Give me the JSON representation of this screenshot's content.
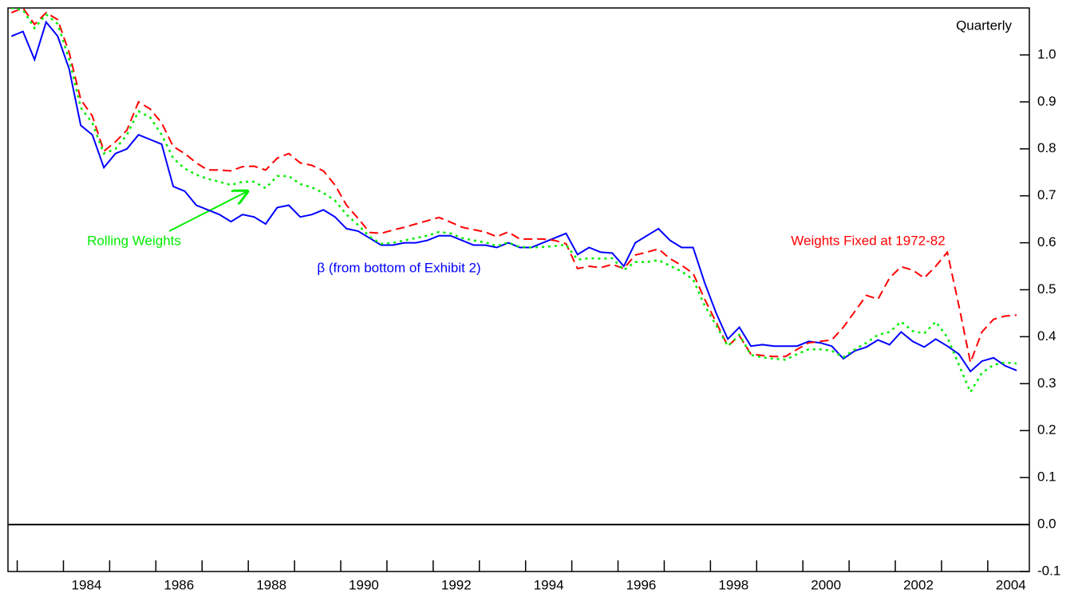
{
  "chart_data": {
    "type": "line",
    "title": "Quarterly",
    "x": [
      1982.875,
      1983.125,
      1983.375,
      1983.625,
      1983.875,
      1984.125,
      1984.375,
      1984.625,
      1984.875,
      1985.125,
      1985.375,
      1985.625,
      1985.875,
      1986.125,
      1986.375,
      1986.625,
      1986.875,
      1987.125,
      1987.375,
      1987.625,
      1987.875,
      1988.125,
      1988.375,
      1988.625,
      1988.875,
      1989.125,
      1989.375,
      1989.625,
      1989.875,
      1990.125,
      1990.375,
      1990.625,
      1990.875,
      1991.125,
      1991.375,
      1991.625,
      1991.875,
      1992.125,
      1992.375,
      1992.625,
      1992.875,
      1993.125,
      1993.375,
      1993.625,
      1993.875,
      1994.125,
      1994.375,
      1994.625,
      1994.875,
      1995.125,
      1995.375,
      1995.625,
      1995.875,
      1996.125,
      1996.375,
      1996.625,
      1996.875,
      1997.125,
      1997.375,
      1997.625,
      1997.875,
      1998.125,
      1998.375,
      1998.625,
      1998.875,
      1999.125,
      1999.375,
      1999.625,
      1999.875,
      2000.125,
      2000.375,
      2000.625,
      2000.875,
      2001.125,
      2001.375,
      2001.625,
      2001.875,
      2002.125,
      2002.375,
      2002.625,
      2002.875,
      2003.125,
      2003.375,
      2003.625,
      2003.875,
      2004.125,
      2004.375,
      2004.625
    ],
    "series": [
      {
        "name": "β (from bottom of Exhibit 2)",
        "color": "#0000ff",
        "style": "solid",
        "values": [
          1.04,
          1.05,
          0.99,
          1.07,
          1.04,
          0.97,
          0.85,
          0.83,
          0.76,
          0.79,
          0.8,
          0.83,
          0.82,
          0.81,
          0.72,
          0.71,
          0.68,
          0.67,
          0.66,
          0.645,
          0.66,
          0.655,
          0.64,
          0.675,
          0.68,
          0.655,
          0.66,
          0.67,
          0.655,
          0.63,
          0.625,
          0.61,
          0.595,
          0.595,
          0.6,
          0.6,
          0.605,
          0.615,
          0.615,
          0.605,
          0.595,
          0.595,
          0.59,
          0.6,
          0.59,
          0.59,
          0.6,
          0.61,
          0.62,
          0.575,
          0.59,
          0.58,
          0.578,
          0.55,
          0.6,
          0.615,
          0.63,
          0.605,
          0.59,
          0.59,
          0.515,
          0.45,
          0.395,
          0.42,
          0.38,
          0.383,
          0.38,
          0.38,
          0.38,
          0.39,
          0.387,
          0.38,
          0.353,
          0.37,
          0.378,
          0.393,
          0.383,
          0.41,
          0.39,
          0.378,
          0.395,
          0.38,
          0.363,
          0.326,
          0.348,
          0.355,
          0.338,
          0.328
        ]
      },
      {
        "name": "Weights Fixed at 1972-82",
        "color": "#ff0000",
        "style": "dashed",
        "values": [
          1.09,
          1.1,
          1.065,
          1.09,
          1.075,
          1.005,
          0.905,
          0.87,
          0.795,
          0.815,
          0.84,
          0.9,
          0.885,
          0.855,
          0.805,
          0.79,
          0.77,
          0.755,
          0.755,
          0.753,
          0.762,
          0.763,
          0.755,
          0.78,
          0.79,
          0.77,
          0.765,
          0.753,
          0.723,
          0.68,
          0.652,
          0.622,
          0.62,
          0.627,
          0.633,
          0.64,
          0.647,
          0.654,
          0.644,
          0.633,
          0.628,
          0.623,
          0.613,
          0.623,
          0.608,
          0.608,
          0.608,
          0.605,
          0.598,
          0.545,
          0.55,
          0.547,
          0.554,
          0.545,
          0.574,
          0.58,
          0.587,
          0.566,
          0.552,
          0.535,
          0.48,
          0.43,
          0.38,
          0.402,
          0.363,
          0.36,
          0.358,
          0.358,
          0.373,
          0.387,
          0.39,
          0.393,
          0.42,
          0.454,
          0.488,
          0.48,
          0.525,
          0.549,
          0.542,
          0.525,
          0.55,
          0.58,
          0.466,
          0.345,
          0.41,
          0.437,
          0.444,
          0.446
        ]
      },
      {
        "name": "Rolling Weights",
        "color": "#00ee00",
        "style": "dotted",
        "values": [
          1.1,
          1.096,
          1.057,
          1.086,
          1.066,
          0.99,
          0.888,
          0.855,
          0.79,
          0.8,
          0.83,
          0.88,
          0.867,
          0.83,
          0.78,
          0.758,
          0.745,
          0.736,
          0.73,
          0.723,
          0.73,
          0.73,
          0.716,
          0.742,
          0.742,
          0.725,
          0.718,
          0.706,
          0.69,
          0.66,
          0.638,
          0.613,
          0.598,
          0.6,
          0.605,
          0.61,
          0.615,
          0.623,
          0.62,
          0.61,
          0.605,
          0.601,
          0.593,
          0.601,
          0.591,
          0.59,
          0.591,
          0.593,
          0.596,
          0.564,
          0.567,
          0.566,
          0.567,
          0.542,
          0.559,
          0.559,
          0.563,
          0.551,
          0.539,
          0.522,
          0.466,
          0.424,
          0.38,
          0.404,
          0.361,
          0.356,
          0.353,
          0.351,
          0.363,
          0.373,
          0.373,
          0.37,
          0.356,
          0.373,
          0.387,
          0.404,
          0.41,
          0.432,
          0.412,
          0.407,
          0.432,
          0.399,
          0.34,
          0.282,
          0.323,
          0.34,
          0.345,
          0.343
        ]
      }
    ],
    "xlim": [
      1982.8,
      2004.9
    ],
    "xticks": [
      1984,
      1986,
      1988,
      1990,
      1992,
      1994,
      1996,
      1998,
      2000,
      2002,
      2004
    ],
    "xminor_ticks": [
      1983,
      1985,
      1987,
      1989,
      1991,
      1993,
      1995,
      1997,
      1999,
      2001,
      2003
    ],
    "ylim": [
      -0.1,
      1.1
    ],
    "yticks": [
      -0.1,
      {
        "value": 0,
        "label": "0.0"
      },
      0.1,
      0.2,
      0.3,
      0.4,
      0.5,
      0.6,
      0.7,
      0.8,
      0.9,
      {
        "value": 1,
        "label": "1.0"
      }
    ],
    "zero_line": true
  }
}
